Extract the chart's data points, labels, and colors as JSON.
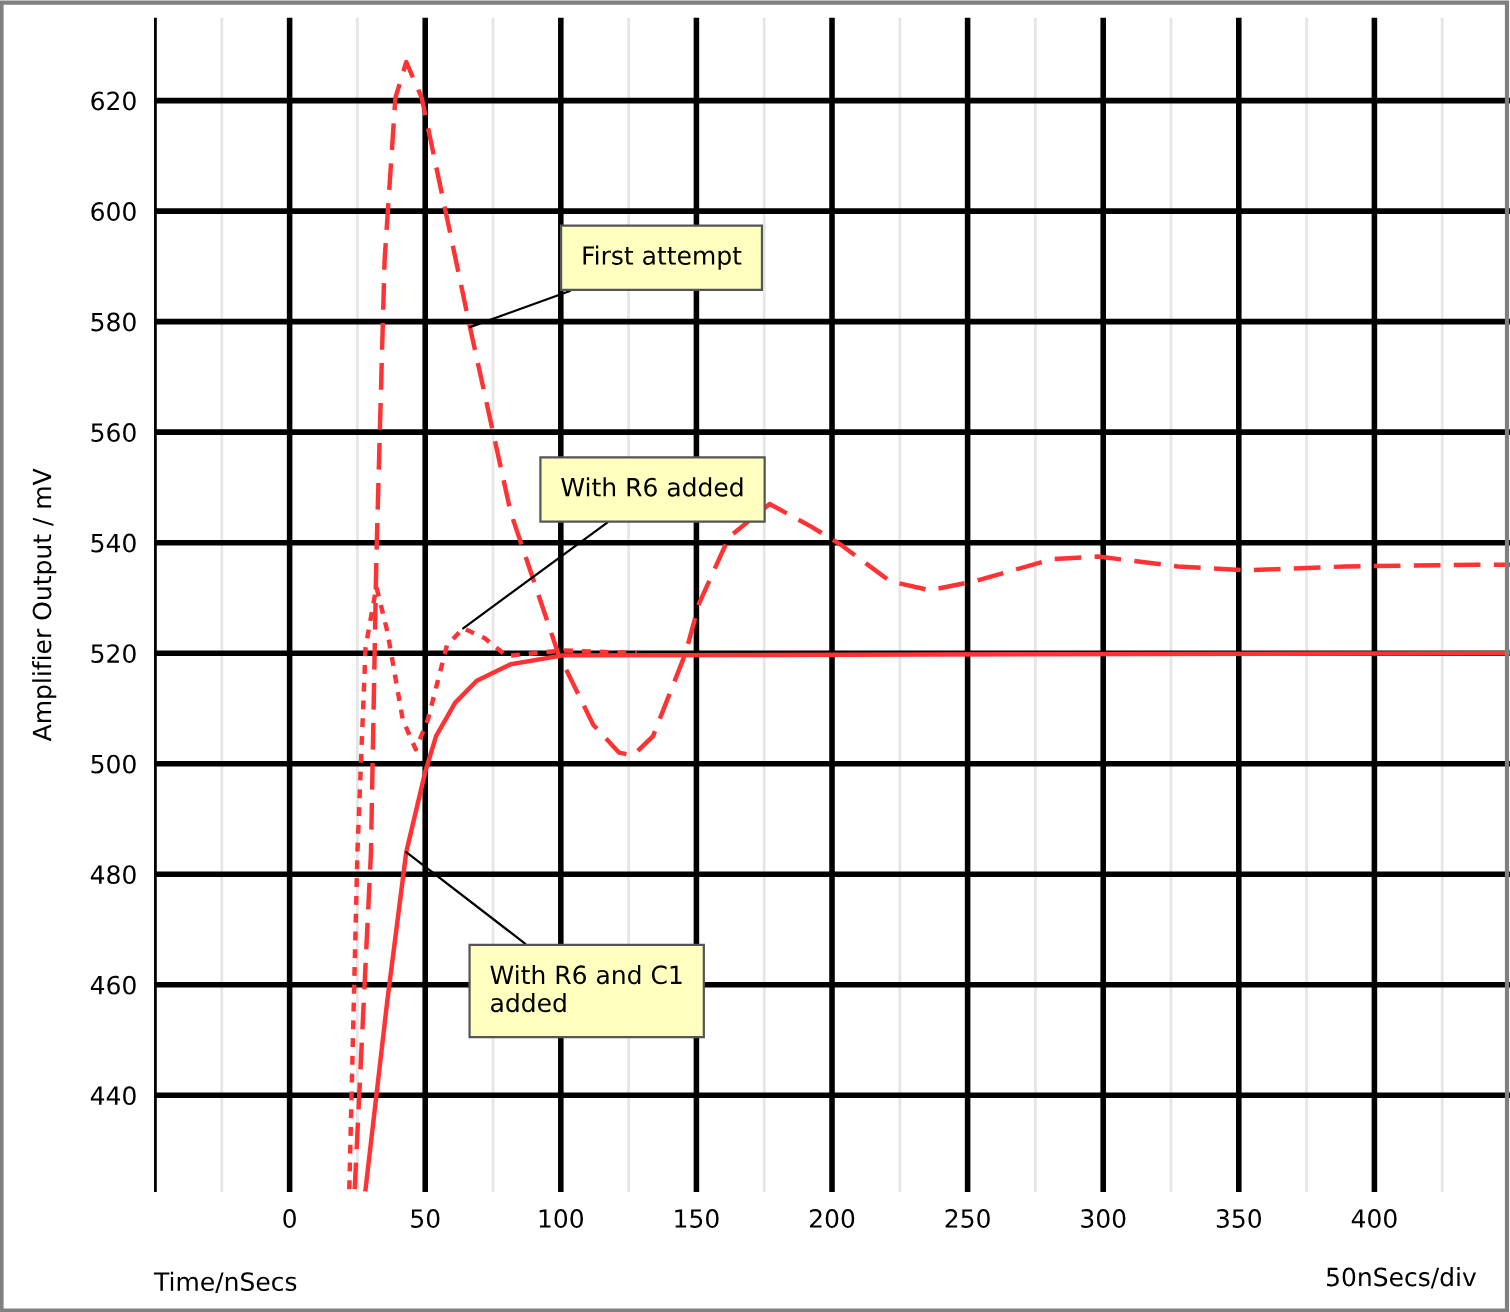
{
  "chart_data": {
    "type": "line",
    "xlabel": "Time/nSecs",
    "ylabel": "Amplifier Output / mV",
    "xlim": [
      -50,
      450
    ],
    "ylim": [
      422.5,
      635
    ],
    "xticks": [
      {
        "value": -50,
        "label": null
      },
      0,
      50,
      100,
      150,
      200,
      250,
      300,
      350,
      400
    ],
    "yticks": [
      440,
      460,
      480,
      500,
      520,
      540,
      560,
      580,
      600,
      620
    ],
    "grid": true,
    "legend": false,
    "marker": "none",
    "series": [
      {
        "color": "#ff3333",
        "line_style": "dashed",
        "x": [
          24,
          30,
          32,
          35,
          39,
          43,
          48.7,
          66.5,
          81.5,
          99,
          112,
          121.5,
          126.7,
          134,
          146,
          151,
          162,
          177,
          192,
          203,
          221.5,
          236,
          252.5,
          281,
          298,
          327.5,
          352.5,
          389.5,
          438.7,
          450
        ],
        "values": [
          423,
          484,
          537.5,
          591,
          620.5,
          627,
          620.5,
          579,
          545.5,
          520,
          507,
          502,
          501.5,
          505,
          520,
          529,
          541,
          547,
          543,
          539.7,
          533,
          531.4,
          533,
          537,
          537.5,
          535.7,
          535,
          535.7,
          536,
          536
        ]
      },
      {
        "color": "#ff3333",
        "line_style": "dotted",
        "x": [
          22,
          25,
          28,
          32,
          36,
          41.7,
          46.5,
          51,
          58,
          64,
          72,
          80,
          101,
          128
        ],
        "values": [
          423,
          484,
          521,
          532,
          524,
          508,
          502.6,
          508,
          521.4,
          524.5,
          522.7,
          519.5,
          520.5,
          520
        ]
      },
      {
        "color": "#ff3333",
        "line_style": "solid",
        "x": [
          28,
          36,
          43,
          50,
          54,
          61,
          69,
          81.5,
          100.8,
          450
        ],
        "values": [
          423,
          457,
          484,
          498.5,
          505,
          511,
          515,
          518,
          519.6,
          520
        ]
      }
    ],
    "annotations": [
      {
        "text": "First attempt",
        "x": 66.5,
        "y": 579
      },
      {
        "text": "With R6 added",
        "x": 64,
        "y": 524.5
      },
      {
        "text": "With R6 and C1\nadded",
        "x": 43,
        "y": 484
      },
      "50nSecs/div"
    ]
  }
}
